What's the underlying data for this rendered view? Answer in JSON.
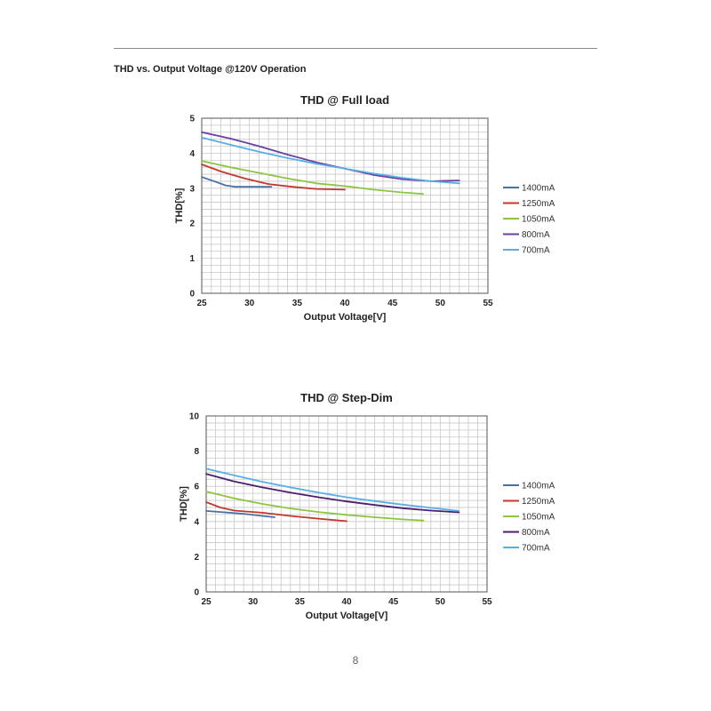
{
  "header": {
    "section_title": "THD vs. Output Voltage @120V Operation"
  },
  "footer": {
    "page_number": "8"
  },
  "chart_data": [
    {
      "type": "line",
      "title": "THD @ Full load",
      "xlabel": "Output Voltage[V]",
      "ylabel": "THD[%]",
      "xlim": [
        25,
        55
      ],
      "ylim": [
        0,
        5
      ],
      "xticks": [
        25,
        30,
        35,
        40,
        45,
        50,
        55
      ],
      "yticks": [
        0,
        1,
        2,
        3,
        4,
        5
      ],
      "grid": true,
      "legend_position": "right",
      "series": [
        {
          "name": "1400mA",
          "color": "#4a6fa5",
          "x": [
            25,
            26.5,
            27.5,
            28.5,
            30,
            32.3
          ],
          "y": [
            3.32,
            3.18,
            3.08,
            3.04,
            3.04,
            3.04
          ]
        },
        {
          "name": "1250mA",
          "color": "#c0392b",
          "x": [
            25,
            27,
            29.5,
            32,
            34.5,
            37,
            40
          ],
          "y": [
            3.68,
            3.48,
            3.28,
            3.12,
            3.04,
            2.98,
            2.96
          ]
        },
        {
          "name": "1050mA",
          "color": "#8cc63f",
          "x": [
            25,
            28,
            31,
            34,
            37,
            40,
            43,
            46,
            48.2
          ],
          "y": [
            3.78,
            3.6,
            3.44,
            3.28,
            3.14,
            3.06,
            2.96,
            2.88,
            2.84
          ]
        },
        {
          "name": "800mA",
          "color": "#6b3fa0",
          "x": [
            25,
            28,
            31,
            34,
            37,
            40,
            43,
            46,
            49,
            52
          ],
          "y": [
            4.6,
            4.42,
            4.2,
            3.96,
            3.74,
            3.56,
            3.38,
            3.26,
            3.2,
            3.22
          ]
        },
        {
          "name": "700mA",
          "color": "#5aaee6",
          "x": [
            25,
            28,
            31,
            34,
            37,
            40,
            43,
            46,
            49,
            52
          ],
          "y": [
            4.45,
            4.24,
            4.04,
            3.86,
            3.7,
            3.56,
            3.42,
            3.3,
            3.2,
            3.14
          ]
        }
      ]
    },
    {
      "type": "line",
      "title": "THD @ Step-Dim",
      "xlabel": "Output Voltage[V]",
      "ylabel": "THD[%]",
      "xlim": [
        25,
        55
      ],
      "ylim": [
        0,
        10
      ],
      "xticks": [
        25,
        30,
        35,
        40,
        45,
        50,
        55
      ],
      "yticks": [
        0,
        2,
        4,
        6,
        8,
        10
      ],
      "grid": true,
      "legend_position": "right",
      "series": [
        {
          "name": "1400mA",
          "color": "#4a6fa5",
          "x": [
            25,
            27,
            29,
            31,
            32.3
          ],
          "y": [
            4.6,
            4.52,
            4.44,
            4.32,
            4.24
          ]
        },
        {
          "name": "1250mA",
          "color": "#c0392b",
          "x": [
            25,
            26.5,
            28,
            31,
            34,
            37,
            40
          ],
          "y": [
            5.1,
            4.8,
            4.62,
            4.5,
            4.32,
            4.16,
            4.02
          ]
        },
        {
          "name": "1050mA",
          "color": "#8cc63f",
          "x": [
            25,
            28,
            31,
            34,
            37,
            40,
            43,
            46,
            48.2
          ],
          "y": [
            5.7,
            5.32,
            5.0,
            4.74,
            4.54,
            4.38,
            4.24,
            4.12,
            4.06
          ]
        },
        {
          "name": "800mA",
          "color": "#4b1f6f",
          "x": [
            25,
            28,
            31,
            34,
            37,
            40,
            43,
            46,
            49,
            52
          ],
          "y": [
            6.7,
            6.28,
            5.94,
            5.64,
            5.38,
            5.14,
            4.94,
            4.76,
            4.62,
            4.52
          ]
        },
        {
          "name": "700mA",
          "color": "#5aaee6",
          "x": [
            25,
            28,
            31,
            34,
            37,
            40,
            43,
            46,
            49,
            52
          ],
          "y": [
            7.0,
            6.62,
            6.26,
            5.94,
            5.64,
            5.38,
            5.16,
            4.96,
            4.78,
            4.6
          ]
        }
      ]
    }
  ]
}
